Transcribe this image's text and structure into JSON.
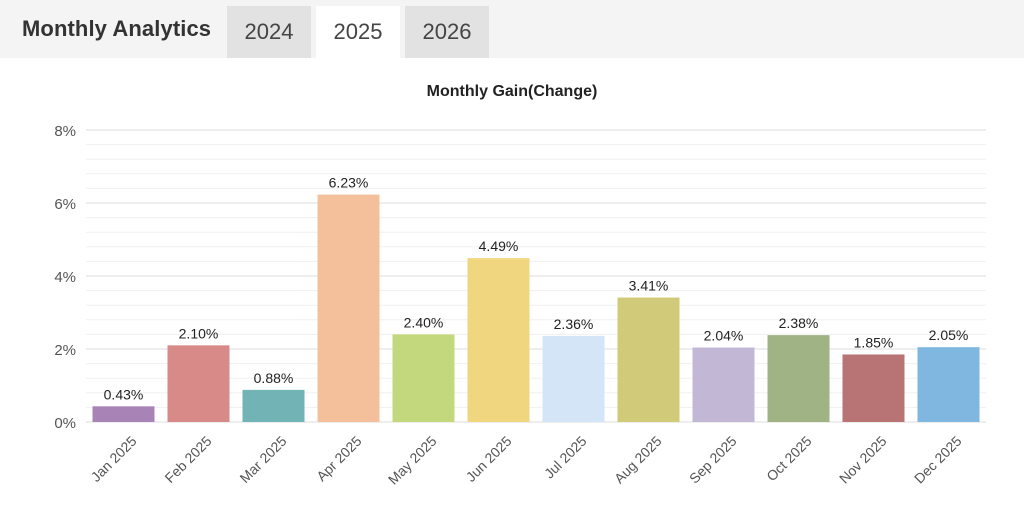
{
  "header": {
    "title": "Monthly Analytics",
    "tabs": [
      {
        "label": "2024",
        "active": false
      },
      {
        "label": "2025",
        "active": true
      },
      {
        "label": "2026",
        "active": false
      }
    ]
  },
  "chart_data": {
    "type": "bar",
    "title": "Monthly Gain(Change)",
    "xlabel": "",
    "ylabel": "",
    "ylim": [
      0,
      8
    ],
    "y_ticks": [
      "0%",
      "2%",
      "4%",
      "6%",
      "8%"
    ],
    "y_tick_values": [
      0,
      2,
      4,
      6,
      8
    ],
    "grid": true,
    "categories": [
      "Jan 2025",
      "Feb 2025",
      "Mar 2025",
      "Apr 2025",
      "May 2025",
      "Jun 2025",
      "Jul 2025",
      "Aug 2025",
      "Sep 2025",
      "Oct 2025",
      "Nov 2025",
      "Dec 2025"
    ],
    "values": [
      0.43,
      2.1,
      0.88,
      6.23,
      2.4,
      4.49,
      2.36,
      3.41,
      2.04,
      2.38,
      1.85,
      2.05
    ],
    "labels": [
      "0.43%",
      "2.10%",
      "0.88%",
      "6.23%",
      "2.40%",
      "4.49%",
      "2.36%",
      "3.41%",
      "2.04%",
      "2.38%",
      "1.85%",
      "2.05%"
    ],
    "colors": [
      "#a884b6",
      "#d88a89",
      "#72b3b5",
      "#f4c09c",
      "#c3d87d",
      "#f1d680",
      "#d3e5f6",
      "#d1ca79",
      "#c2b7d4",
      "#9fb385",
      "#b87374",
      "#7fb7e0"
    ]
  }
}
